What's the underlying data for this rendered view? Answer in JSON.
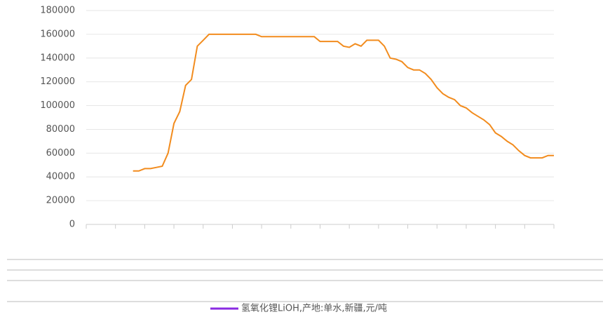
{
  "chart_data": {
    "type": "line",
    "categories": [
      null,
      null,
      null,
      null,
      null,
      null,
      null,
      null,
      null,
      null,
      null,
      null,
      null,
      null,
      null,
      null,
      null,
      null,
      null,
      null,
      null,
      null,
      null,
      null,
      null,
      null,
      null,
      null,
      null,
      null,
      null,
      null,
      null,
      null,
      null,
      null,
      null,
      null,
      null,
      null,
      null,
      null,
      null,
      null,
      null,
      null,
      null,
      null,
      null,
      null,
      null,
      null,
      null,
      null,
      null,
      null,
      null,
      null,
      null,
      null,
      null,
      null,
      null,
      null,
      null,
      null,
      null,
      null,
      null,
      null,
      null,
      null,
      null,
      null,
      null,
      null,
      null,
      null,
      null,
      null,
      null
    ],
    "series": [
      {
        "name": "氢氧化锂LiOH,产地:单水,新疆,元/吨",
        "color": "#f28c1e",
        "legend_color": "#8a2be2",
        "values": [
          null,
          null,
          null,
          null,
          null,
          null,
          null,
          null,
          45000,
          45000,
          47000,
          47000,
          48000,
          49000,
          60000,
          85000,
          95000,
          117000,
          122000,
          150000,
          155000,
          160000,
          160000,
          160000,
          160000,
          160000,
          160000,
          160000,
          160000,
          160000,
          158000,
          158000,
          158000,
          158000,
          158000,
          158000,
          158000,
          158000,
          158000,
          158000,
          154000,
          154000,
          154000,
          154000,
          150000,
          149000,
          152000,
          150000,
          155000,
          155000,
          155000,
          150000,
          140000,
          139000,
          137000,
          132000,
          130000,
          130000,
          127000,
          122000,
          115000,
          110000,
          107000,
          105000,
          100000,
          98000,
          94000,
          91000,
          88000,
          84000,
          77000,
          74000,
          70000,
          67000,
          62000,
          58000,
          56000,
          56000,
          56000,
          58000,
          58000
        ]
      }
    ],
    "ylim": [
      0,
      180000
    ],
    "yticks": [
      0,
      20000,
      40000,
      60000,
      80000,
      100000,
      120000,
      140000,
      160000,
      180000
    ],
    "grid": true
  }
}
